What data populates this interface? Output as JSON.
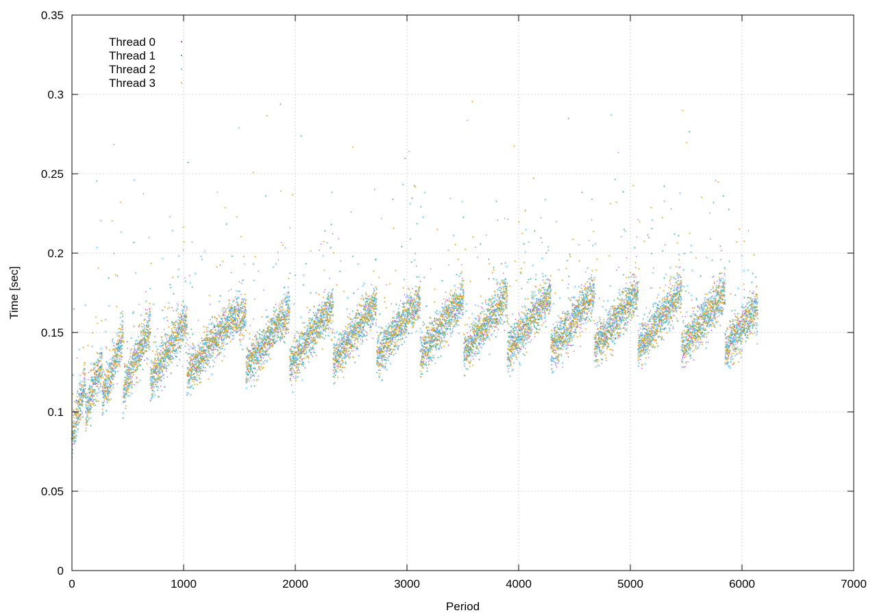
{
  "chart_data": {
    "type": "scatter",
    "title": "",
    "xlabel": "Period",
    "ylabel": "Time [sec]",
    "xlim": [
      0,
      7000
    ],
    "ylim": [
      0,
      0.35
    ],
    "xticks": [
      0,
      1000,
      2000,
      3000,
      4000,
      5000,
      6000,
      7000
    ],
    "xtick_labels": [
      "0",
      "1000",
      "2000",
      "3000",
      "4000",
      "5000",
      "6000",
      "7000"
    ],
    "yticks": [
      0,
      0.05,
      0.1,
      0.15,
      0.2,
      0.25,
      0.3,
      0.35
    ],
    "ytick_labels": [
      "0",
      "0.05",
      "0.1",
      "0.15",
      "0.2",
      "0.25",
      "0.3",
      "0.35"
    ],
    "grid": true,
    "legend_position": "top-left",
    "x_max_observed": 6140,
    "trend": {
      "x": [
        0,
        200,
        500,
        1000,
        1500,
        2000,
        2500,
        3000,
        3500,
        4000,
        4500,
        5000,
        5500,
        6140
      ],
      "y": [
        0.095,
        0.118,
        0.132,
        0.14,
        0.145,
        0.147,
        0.15,
        0.153,
        0.155,
        0.156,
        0.157,
        0.158,
        0.158,
        0.158
      ]
    },
    "sawtooth": {
      "early_period": 110,
      "late_period": 390,
      "transition_x": 1500,
      "amplitude": 0.018
    },
    "series": [
      {
        "name": "Thread 0",
        "color": "#9400d3",
        "marker": "dot",
        "points_approx": 6140
      },
      {
        "name": "Thread 1",
        "color": "#009e73",
        "marker": "plus",
        "points_approx": 6140
      },
      {
        "name": "Thread 2",
        "color": "#56b4e9",
        "marker": "x",
        "points_approx": 6140
      },
      {
        "name": "Thread 3",
        "color": "#e69f00",
        "marker": "star",
        "points_approx": 6140
      }
    ]
  }
}
